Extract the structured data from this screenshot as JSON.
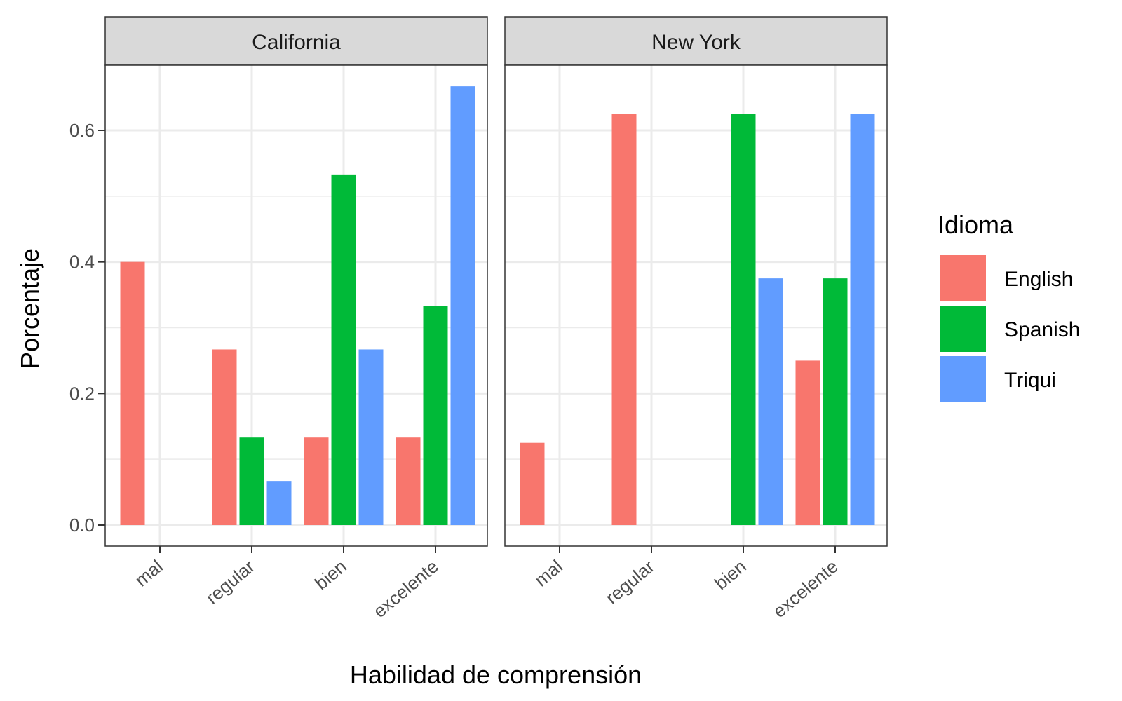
{
  "chart_data": {
    "type": "bar",
    "xlabel": "Habilidad de comprensión",
    "ylabel": "Porcentaje",
    "ylim": [
      -0.03,
      0.7
    ],
    "yticks": [
      0.0,
      0.2,
      0.4,
      0.6
    ],
    "ytick_labels": [
      "0.0",
      "0.2",
      "0.4",
      "0.6"
    ],
    "grid": true,
    "legend": {
      "title": "Idioma",
      "position": "right"
    },
    "categories": [
      "mal",
      "regular",
      "bien",
      "excelente"
    ],
    "series_names": [
      "English",
      "Spanish",
      "Triqui"
    ],
    "series_colors": [
      "#F8766D",
      "#00BA38",
      "#619CFF"
    ],
    "panels": [
      {
        "name": "California",
        "series": [
          {
            "name": "English",
            "values": [
              0.4,
              0.267,
              0.133,
              0.133
            ]
          },
          {
            "name": "Spanish",
            "values": [
              null,
              0.133,
              0.533,
              0.333
            ]
          },
          {
            "name": "Triqui",
            "values": [
              null,
              0.067,
              0.267,
              0.667
            ]
          }
        ]
      },
      {
        "name": "New York",
        "series": [
          {
            "name": "English",
            "values": [
              0.125,
              0.625,
              null,
              0.25
            ]
          },
          {
            "name": "Spanish",
            "values": [
              null,
              null,
              0.625,
              0.375
            ]
          },
          {
            "name": "Triqui",
            "values": [
              null,
              null,
              0.375,
              0.625
            ]
          }
        ]
      }
    ]
  }
}
